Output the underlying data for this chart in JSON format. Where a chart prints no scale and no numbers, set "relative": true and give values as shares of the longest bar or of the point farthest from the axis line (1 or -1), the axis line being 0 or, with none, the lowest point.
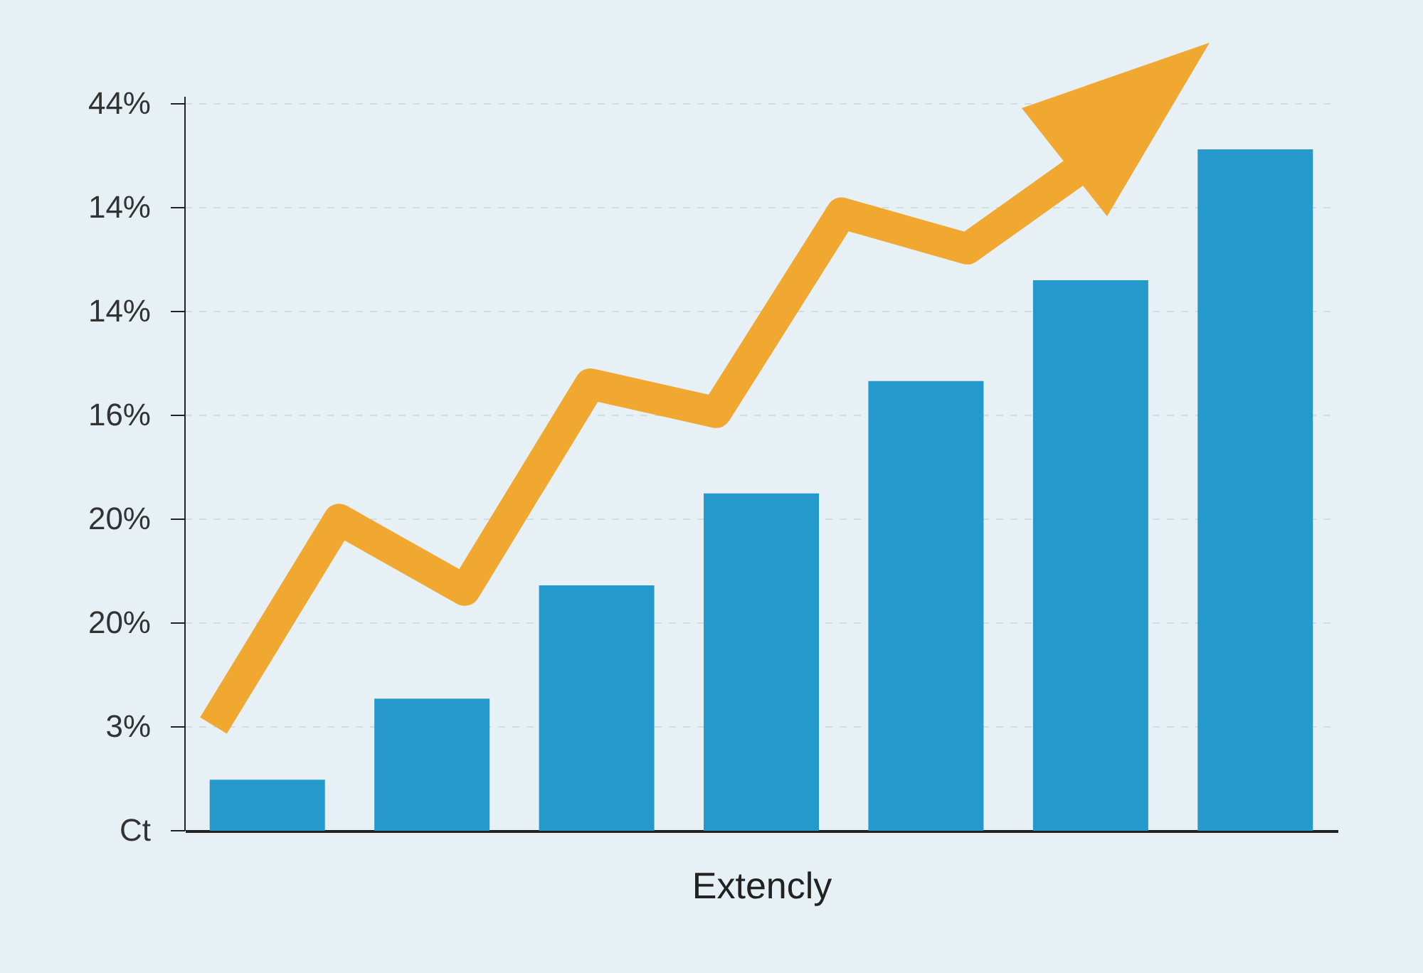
{
  "chart_data": [
    {
      "type": "bar",
      "xlabel": "Extencly",
      "categories": [
        null,
        null,
        null,
        null,
        null,
        null,
        null
      ],
      "values": [
        0.075,
        0.194,
        0.36,
        0.495,
        0.66,
        0.808,
        1
      ],
      "color": "#2699cc",
      "relative": true,
      "annotations": [
        "Ct",
        "3%",
        "20%",
        "20%",
        "16%",
        "14%",
        "14%",
        "44%"
      ],
      "grid": "y"
    },
    {
      "type": "line",
      "categories": [
        null,
        null,
        null,
        null,
        null,
        null,
        null,
        null
      ],
      "values": [
        0,
        0.364,
        0.239,
        0.603,
        0.553,
        0.905,
        0.842,
        1
      ],
      "color": "#f0a830",
      "relative": true
    }
  ]
}
